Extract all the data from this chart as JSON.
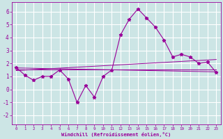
{
  "background_color": "#cce5e5",
  "grid_color": "#ffffff",
  "line_color": "#990099",
  "marker_color": "#990099",
  "xlabel": "Windchill (Refroidissement éolien,°C)",
  "xlim": [
    -0.5,
    23.5
  ],
  "ylim": [
    -2.7,
    6.7
  ],
  "xticks": [
    0,
    1,
    2,
    3,
    4,
    5,
    6,
    7,
    8,
    9,
    10,
    11,
    12,
    13,
    14,
    15,
    16,
    17,
    18,
    19,
    20,
    21,
    22,
    23
  ],
  "yticks": [
    -2,
    -1,
    0,
    1,
    2,
    3,
    4,
    5,
    6
  ],
  "series1": [
    1.7,
    1.1,
    0.7,
    1.0,
    1.0,
    1.5,
    0.8,
    -1.0,
    0.3,
    -0.6,
    1.0,
    1.5,
    4.2,
    5.4,
    6.2,
    5.5,
    4.8,
    3.8,
    2.5,
    2.7,
    2.5,
    2.0,
    2.1,
    1.3
  ],
  "trend1_x": [
    0,
    23
  ],
  "trend1_y": [
    1.55,
    1.55
  ],
  "trend2_x": [
    0,
    23
  ],
  "trend2_y": [
    1.45,
    2.3
  ],
  "trend3_x": [
    0,
    23
  ],
  "trend3_y": [
    1.65,
    1.35
  ]
}
